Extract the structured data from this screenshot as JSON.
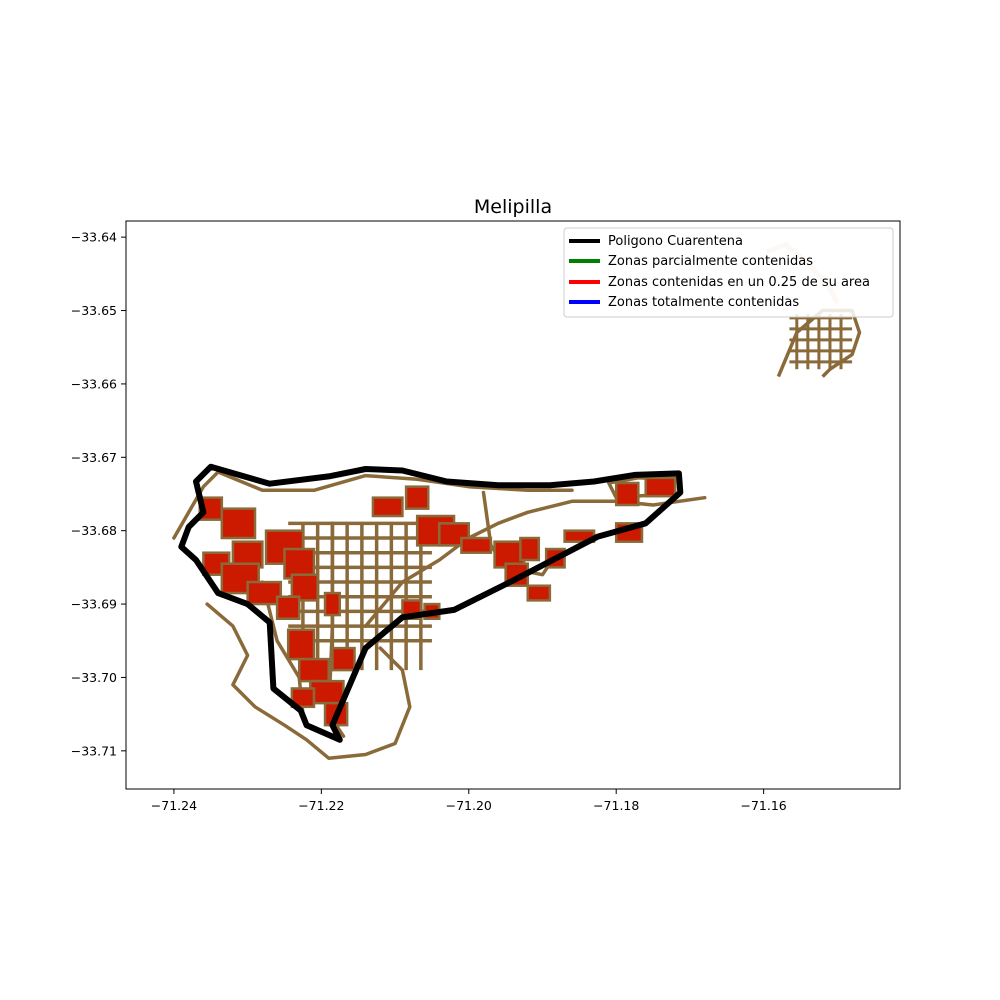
{
  "chart_data": {
    "type": "map",
    "title": "Melipilla",
    "xlabel": "",
    "ylabel": "",
    "xlim": [
      -71.2465,
      -71.1415
    ],
    "ylim": [
      -33.7152,
      -33.6378
    ],
    "x_ticks": [
      {
        "value": -71.24,
        "label": "−71.24"
      },
      {
        "value": -71.22,
        "label": "−71.22"
      },
      {
        "value": -71.2,
        "label": "−71.20"
      },
      {
        "value": -71.18,
        "label": "−71.18"
      },
      {
        "value": -71.16,
        "label": "−71.16"
      }
    ],
    "y_ticks": [
      {
        "value": -33.64,
        "label": "−33.64"
      },
      {
        "value": -33.65,
        "label": "−33.65"
      },
      {
        "value": -33.66,
        "label": "−33.66"
      },
      {
        "value": -33.67,
        "label": "−33.67"
      },
      {
        "value": -33.68,
        "label": "−33.68"
      },
      {
        "value": -33.69,
        "label": "−33.69"
      },
      {
        "value": -33.7,
        "label": "−33.70"
      },
      {
        "value": -33.71,
        "label": "−33.71"
      }
    ],
    "grid": false,
    "legend": {
      "placement": "upper-right",
      "entries": [
        {
          "label": "Poligono Cuarentena",
          "color": "#000000"
        },
        {
          "label": "Zonas parcialmente contenidas",
          "color": "#008000"
        },
        {
          "label": "Zonas contenidas en un 0.25 de su area",
          "color": "#ff0000"
        },
        {
          "label": "Zonas totalmente contenidas",
          "color": "#0000ff"
        }
      ]
    },
    "colors": {
      "quarantine": "#000000",
      "zone_outline": "#8b6a3a",
      "zone_fill": "#cc1a00",
      "faded_outline": "#e6d2c3"
    },
    "quarantine_polygon": [
      [
        -71.235,
        -33.6713
      ],
      [
        -71.227,
        -33.6736
      ],
      [
        -71.219,
        -33.6726
      ],
      [
        -71.214,
        -33.6716
      ],
      [
        -71.209,
        -33.6718
      ],
      [
        -71.203,
        -33.6733
      ],
      [
        -71.196,
        -33.6738
      ],
      [
        -71.189,
        -33.6738
      ],
      [
        -71.183,
        -33.6733
      ],
      [
        -71.1775,
        -33.6724
      ],
      [
        -71.1715,
        -33.6722
      ],
      [
        -71.1713,
        -33.6748
      ],
      [
        -71.176,
        -33.679
      ],
      [
        -71.1825,
        -33.6808
      ],
      [
        -71.194,
        -33.6868
      ],
      [
        -71.202,
        -33.6908
      ],
      [
        -71.209,
        -33.6918
      ],
      [
        -71.214,
        -33.696
      ],
      [
        -71.2185,
        -33.7065
      ],
      [
        -71.2175,
        -33.7085
      ],
      [
        -71.222,
        -33.7065
      ],
      [
        -71.2228,
        -33.7045
      ],
      [
        -71.2265,
        -33.7015
      ],
      [
        -71.227,
        -33.6925
      ],
      [
        -71.23,
        -33.69
      ],
      [
        -71.234,
        -33.6885
      ],
      [
        -71.237,
        -33.684
      ],
      [
        -71.239,
        -33.6822
      ],
      [
        -71.238,
        -33.6795
      ],
      [
        -71.236,
        -33.6775
      ],
      [
        -71.237,
        -33.6733
      ],
      [
        -71.235,
        -33.6713
      ]
    ],
    "zone_outlines": [
      [
        [
          -71.24,
          -33.681
        ],
        [
          -71.236,
          -33.674
        ],
        [
          -71.234,
          -33.672
        ],
        [
          -71.228,
          -33.6745
        ],
        [
          -71.221,
          -33.6745
        ],
        [
          -71.214,
          -33.6725
        ],
        [
          -71.207,
          -33.673
        ],
        [
          -71.2,
          -33.674
        ],
        [
          -71.192,
          -33.6745
        ],
        [
          -71.186,
          -33.6745
        ]
      ],
      [
        [
          -71.2355,
          -33.69
        ],
        [
          -71.232,
          -33.693
        ],
        [
          -71.23,
          -33.697
        ],
        [
          -71.232,
          -33.701
        ],
        [
          -71.229,
          -33.704
        ],
        [
          -71.225,
          -33.7065
        ],
        [
          -71.222,
          -33.7085
        ],
        [
          -71.219,
          -33.711
        ],
        [
          -71.214,
          -33.7105
        ],
        [
          -71.21,
          -33.709
        ],
        [
          -71.208,
          -33.704
        ],
        [
          -71.209,
          -33.699
        ],
        [
          -71.212,
          -33.696
        ]
      ],
      [
        [
          -71.2185,
          -33.679
        ],
        [
          -71.2185,
          -33.693
        ],
        [
          -71.219,
          -33.705
        ],
        [
          -71.217,
          -33.708
        ]
      ],
      [
        [
          -71.228,
          -33.687
        ],
        [
          -71.226,
          -33.695
        ],
        [
          -71.223,
          -33.7
        ],
        [
          -71.2225,
          -33.705
        ]
      ],
      [
        [
          -71.214,
          -33.693
        ],
        [
          -71.209,
          -33.687
        ],
        [
          -71.204,
          -33.684
        ],
        [
          -71.2,
          -33.681
        ],
        [
          -71.196,
          -33.679
        ],
        [
          -71.192,
          -33.6775
        ],
        [
          -71.186,
          -33.676
        ],
        [
          -71.18,
          -33.676
        ],
        [
          -71.175,
          -33.6765
        ],
        [
          -71.168,
          -33.6755
        ]
      ],
      [
        [
          -71.198,
          -33.6748
        ],
        [
          -71.197,
          -33.682
        ],
        [
          -71.195,
          -33.685
        ],
        [
          -71.19,
          -33.686
        ],
        [
          -71.188,
          -33.683
        ]
      ],
      [
        [
          -71.181,
          -33.6735
        ],
        [
          -71.177,
          -33.6728
        ],
        [
          -71.173,
          -33.673
        ],
        [
          -71.1735,
          -33.675
        ],
        [
          -71.18,
          -33.6755
        ],
        [
          -71.181,
          -33.6735
        ]
      ]
    ],
    "street_grid": {
      "x_lines": [
        -71.2225,
        -71.2205,
        -71.2185,
        -71.2165,
        -71.2145,
        -71.2125,
        -71.2105,
        -71.2085,
        -71.2065
      ],
      "x_range_y": [
        -33.679,
        -33.699
      ],
      "y_lines": [
        -33.679,
        -33.681,
        -33.683,
        -33.685,
        -33.687,
        -33.689,
        -33.691,
        -33.693,
        -33.695
      ],
      "y_range_x": [
        -71.2245,
        -71.205
      ]
    },
    "contained_blocks": [
      [
        -71.2365,
        -33.6755,
        0.003,
        0.003
      ],
      [
        -71.2335,
        -33.677,
        0.0045,
        0.004
      ],
      [
        -71.232,
        -33.6815,
        0.004,
        0.0035
      ],
      [
        -71.236,
        -33.683,
        0.0035,
        0.003
      ],
      [
        -71.2335,
        -33.6845,
        0.005,
        0.004
      ],
      [
        -71.23,
        -33.687,
        0.0045,
        0.003
      ],
      [
        -71.2275,
        -33.68,
        0.005,
        0.0045
      ],
      [
        -71.225,
        -33.6825,
        0.004,
        0.004
      ],
      [
        -71.224,
        -33.686,
        0.0035,
        0.0035
      ],
      [
        -71.226,
        -33.689,
        0.003,
        0.003
      ],
      [
        -71.2245,
        -33.6935,
        0.0035,
        0.004
      ],
      [
        -71.223,
        -33.6975,
        0.004,
        0.003
      ],
      [
        -71.2215,
        -33.7005,
        0.0045,
        0.003
      ],
      [
        -71.224,
        -33.7015,
        0.003,
        0.0025
      ],
      [
        -71.2195,
        -33.7035,
        0.003,
        0.003
      ],
      [
        -71.2185,
        -33.696,
        0.003,
        0.003
      ],
      [
        -71.2195,
        -33.6885,
        0.002,
        0.003
      ],
      [
        -71.213,
        -33.6755,
        0.004,
        0.0025
      ],
      [
        -71.2085,
        -33.674,
        0.003,
        0.003
      ],
      [
        -71.207,
        -33.678,
        0.005,
        0.004
      ],
      [
        -71.204,
        -33.679,
        0.004,
        0.003
      ],
      [
        -71.201,
        -33.681,
        0.004,
        0.002
      ],
      [
        -71.1965,
        -33.6815,
        0.004,
        0.0035
      ],
      [
        -71.195,
        -33.6845,
        0.003,
        0.003
      ],
      [
        -71.193,
        -33.681,
        0.0025,
        0.003
      ],
      [
        -71.192,
        -33.6875,
        0.003,
        0.002
      ],
      [
        -71.1895,
        -33.6825,
        0.0025,
        0.0025
      ],
      [
        -71.187,
        -33.68,
        0.004,
        0.0015
      ],
      [
        -71.209,
        -33.6895,
        0.0025,
        0.0025
      ],
      [
        -71.206,
        -33.69,
        0.002,
        0.002
      ],
      [
        -71.18,
        -33.6735,
        0.003,
        0.003
      ],
      [
        -71.176,
        -33.6728,
        0.004,
        0.0025
      ],
      [
        -71.18,
        -33.679,
        0.0035,
        0.0025
      ]
    ],
    "east_cluster": {
      "outline": [
        [
          -71.158,
          -33.659
        ],
        [
          -71.1555,
          -33.653
        ],
        [
          -71.152,
          -33.65
        ],
        [
          -71.148,
          -33.65
        ],
        [
          -71.147,
          -33.653
        ],
        [
          -71.148,
          -33.656
        ],
        [
          -71.151,
          -33.658
        ],
        [
          -71.152,
          -33.659
        ]
      ],
      "faded_outline": [
        [
          -71.1595,
          -33.642
        ],
        [
          -71.157,
          -33.641
        ],
        [
          -71.154,
          -33.6435
        ],
        [
          -71.151,
          -33.647
        ],
        [
          -71.15,
          -33.649
        ]
      ],
      "grid_x": [
        -71.1555,
        -71.154,
        -71.1525,
        -71.151,
        -71.1495
      ],
      "grid_x_range_y": [
        -33.6505,
        -33.658
      ],
      "grid_y": [
        -33.651,
        -33.6525,
        -33.654,
        -33.6555,
        -33.657
      ],
      "grid_y_range_x": [
        -71.1565,
        -71.148
      ]
    }
  }
}
